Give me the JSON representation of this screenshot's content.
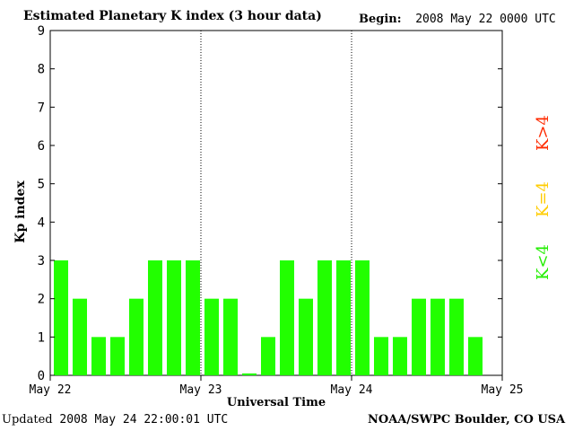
{
  "header": {
    "title": "Estimated Planetary K index (3 hour data)",
    "begin_label": "Begin:",
    "begin_value": "2008 May 22 0000 UTC"
  },
  "footer": {
    "updated_label": "Updated",
    "updated_value": "2008 May 24 22:00:01 UTC",
    "credit": "NOAA/SWPC Boulder, CO USA"
  },
  "legend": [
    {
      "label": "K>4",
      "color": "#ff2a00"
    },
    {
      "label": "K=4",
      "color": "#ffcc00"
    },
    {
      "label": "K<4",
      "color": "#22ee00"
    }
  ],
  "colors": {
    "bar": "#22ff00",
    "axis": "#000000"
  },
  "chart_data": {
    "type": "bar",
    "title": "Estimated Planetary K index (3 hour data)",
    "xlabel": "Universal Time",
    "ylabel": "Kp index",
    "ylim": [
      0,
      9
    ],
    "yticks": [
      "0",
      "1",
      "2",
      "3",
      "4",
      "5",
      "6",
      "7",
      "8",
      "9"
    ],
    "xticks": [
      "May 22",
      "May 23",
      "May 24",
      "May 25"
    ],
    "day_separators": "dotted",
    "bins_per_day": 8,
    "series": [
      {
        "values": [
          3,
          2,
          1,
          1,
          2,
          3,
          3,
          3,
          2,
          2,
          0.05,
          1,
          3,
          2,
          3,
          3,
          3,
          1,
          1,
          2,
          2,
          2,
          1
        ]
      }
    ]
  }
}
